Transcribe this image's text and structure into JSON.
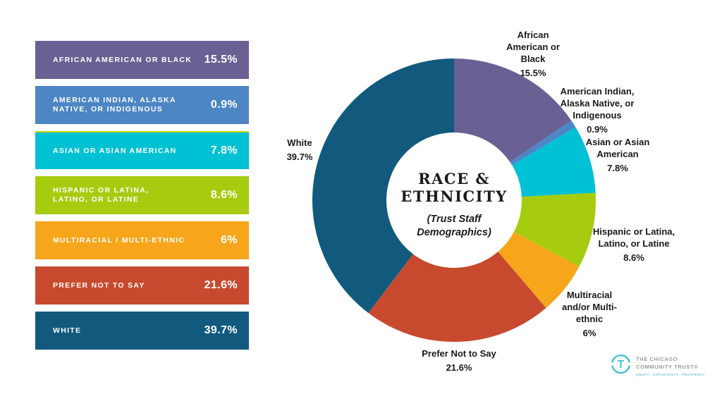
{
  "chart_data": {
    "type": "pie",
    "donut": true,
    "title": "RACE & ETHNICITY",
    "subtitle": "(Trust Staff Demographics)",
    "legend_position": "left",
    "direction": "clockwise",
    "start_angle_deg": 0,
    "series": [
      {
        "name": "African\nAmerican or\nBlack",
        "legend_label": "AFRICAN AMERICAN OR BLACK",
        "value": 15.5,
        "display": "15.5%",
        "color": "#6A6094"
      },
      {
        "name": "American Indian,\nAlaska Native, or\nIndigenous",
        "legend_label": "AMERICAN INDIAN, ALASKA\nNATIVE, OR INDIGENOUS",
        "value": 0.9,
        "display": "0.9%",
        "color": "#4C86C5"
      },
      {
        "name": "Asian or Asian\nAmerican",
        "legend_label": "ASIAN OR ASIAN AMERICAN",
        "value": 7.8,
        "display": "7.8%",
        "color": "#00C1D4"
      },
      {
        "name": "Hispanic or Latina,\nLatino, or Latine",
        "legend_label": "HISPANIC OR LATINA,\nLATINO, OR LATINE",
        "value": 8.6,
        "display": "8.6%",
        "color": "#A7CB0F"
      },
      {
        "name": "Multiracial\nand/or Multi-\nethnic",
        "legend_label": "MULTIRACIAL / MULTI-ETHNIC",
        "value": 6,
        "display": "6%",
        "color": "#F7A61B"
      },
      {
        "name": "Prefer Not to Say",
        "legend_label": "PREFER NOT TO SAY",
        "value": 21.6,
        "display": "21.6%",
        "color": "#C74A2E"
      },
      {
        "name": "White",
        "legend_label": "WHITE",
        "value": 39.7,
        "display": "39.7%",
        "color": "#115A7E"
      }
    ]
  },
  "logo": {
    "icon_letter": "T",
    "name_line1": "THE CHICAGO",
    "name_line2": "COMMUNITY TRUST®",
    "tagline": "EQUITY • OPPORTUNITY • PROSPERITY",
    "color": "#45C2D8"
  }
}
